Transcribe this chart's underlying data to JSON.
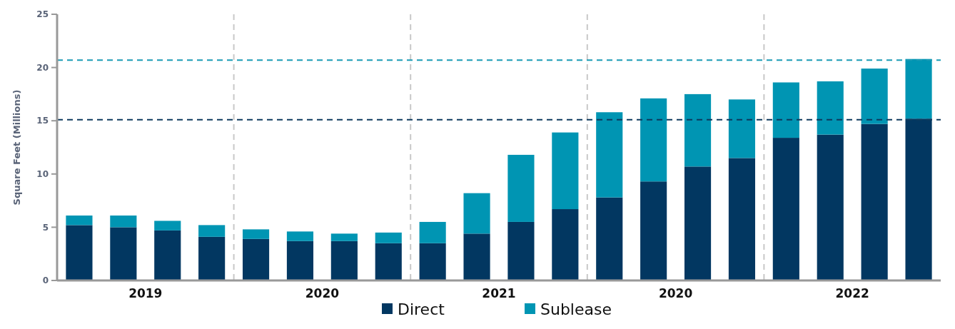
{
  "chart_data": {
    "type": "bar",
    "stacked": true,
    "ylabel": "Square Feet (Millions)",
    "categories": [
      null,
      null,
      null,
      null,
      null,
      null,
      null,
      null,
      null,
      null,
      null,
      null,
      null,
      null,
      null,
      null,
      null,
      null,
      null,
      null
    ],
    "annotations": [
      "2019",
      "2020",
      "2021",
      "2020",
      "2022"
    ],
    "ylim": [
      0,
      25
    ],
    "yticks": [
      0,
      5,
      10,
      15,
      20,
      25
    ],
    "series": [
      {
        "name": "Direct",
        "color": "#023761",
        "values": [
          5.2,
          5.0,
          4.7,
          4.1,
          3.9,
          3.7,
          3.7,
          3.5,
          3.5,
          4.4,
          5.5,
          6.7,
          7.8,
          9.3,
          10.7,
          11.5,
          13.4,
          13.7,
          14.7,
          15.2
        ]
      },
      {
        "name": "Sublease",
        "color": "#0095b3",
        "values": [
          0.9,
          1.1,
          0.9,
          1.1,
          0.9,
          0.9,
          0.7,
          1.0,
          2.0,
          3.8,
          6.3,
          7.2,
          8.0,
          7.8,
          6.8,
          5.5,
          5.2,
          5.0,
          5.2,
          5.6
        ]
      }
    ],
    "ref_lines": [
      {
        "axis": "y",
        "value": 15.1,
        "color": "#0e3a5e",
        "line_style": "dashed"
      },
      {
        "axis": "y",
        "value": 20.7,
        "color": "#1a9bb5",
        "line_style": "dashed"
      }
    ],
    "grid": false,
    "legend": "bottom"
  }
}
